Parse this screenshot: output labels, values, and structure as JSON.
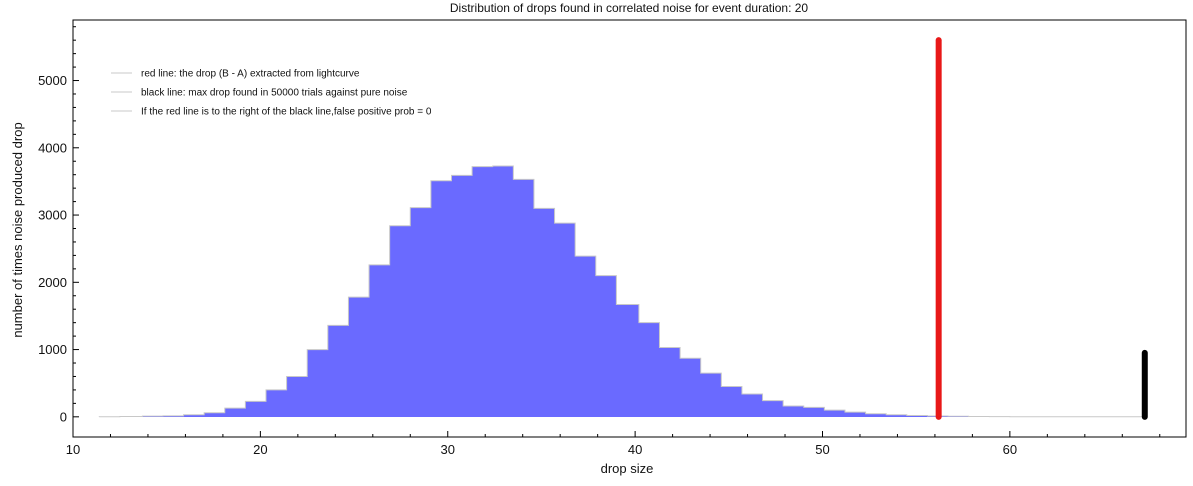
{
  "chart_data": {
    "type": "bar",
    "title": "Distribution of drops found in correlated noise for event duration: 20",
    "xlabel": "drop size",
    "ylabel": "number of times noise produced drop",
    "xlim": [
      10,
      69.4
    ],
    "ylim": [
      -300,
      5900
    ],
    "xticks": [
      10,
      20,
      30,
      40,
      50,
      60
    ],
    "yticks": [
      0,
      1000,
      2000,
      3000,
      4000,
      5000
    ],
    "grid": false,
    "legend_position": "top-left",
    "legend": [
      "red line: the drop (B - A) extracted from lightcurve",
      "black line: max drop found in 50000 trials against pure noise",
      "If the red line is to the right of the black line,false positive prob = 0"
    ],
    "histogram": {
      "bin_edges": [
        11.4,
        12.5,
        13.7,
        14.8,
        15.9,
        17.0,
        18.1,
        19.2,
        20.3,
        21.4,
        22.5,
        23.6,
        24.7,
        25.8,
        26.9,
        28.0,
        29.1,
        30.2,
        31.3,
        32.4,
        33.5,
        34.6,
        35.7,
        36.8,
        37.9,
        39.0,
        40.2,
        41.3,
        42.4,
        43.5,
        44.6,
        45.7,
        46.8,
        47.9,
        49.0,
        50.1,
        51.2,
        52.3,
        53.4,
        54.5,
        55.6,
        56.7,
        57.8,
        58.9,
        60.0,
        61.1,
        62.2,
        63.3,
        64.4,
        65.5,
        66.6,
        67.2
      ],
      "counts": [
        2,
        5,
        10,
        15,
        30,
        60,
        130,
        230,
        400,
        600,
        1000,
        1360,
        1780,
        2260,
        2840,
        3110,
        3510,
        3590,
        3720,
        3730,
        3530,
        3100,
        2880,
        2390,
        2100,
        1670,
        1400,
        1030,
        870,
        650,
        450,
        340,
        240,
        160,
        140,
        100,
        70,
        45,
        30,
        20,
        12,
        8,
        5,
        3,
        2,
        1,
        1,
        1,
        1,
        1,
        1
      ],
      "color": "#6a6aff"
    },
    "vlines": [
      {
        "x": 56.2,
        "ymin": 0,
        "ymax": 5600,
        "color": "#e81818"
      },
      {
        "x": 67.2,
        "ymin": 0,
        "ymax": 950,
        "color": "#000000"
      }
    ],
    "outline_color": "#c8c8c8"
  }
}
